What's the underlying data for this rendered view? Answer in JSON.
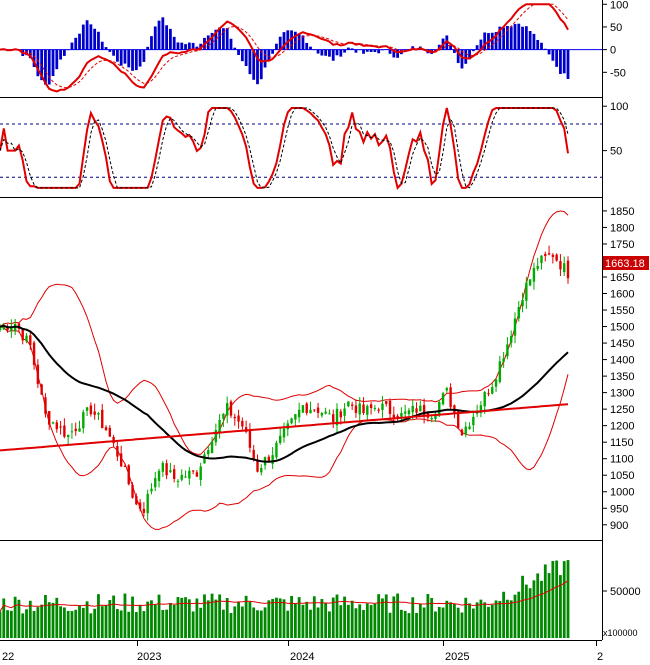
{
  "chart_data": [
    {
      "panel": "macd",
      "type": "line",
      "y_range": [
        -100,
        105
      ],
      "y_ticks": [
        100,
        50,
        0,
        -50
      ],
      "zero_line": 0,
      "series": [],
      "colors": {
        "line": "#e00000",
        "signal": "#e00000",
        "histogram": "#0000cc",
        "zero": "#0000ff"
      }
    },
    {
      "panel": "stochastic",
      "type": "line",
      "y_range": [
        0,
        107
      ],
      "y_ticks": [
        100,
        50
      ],
      "levels": [
        80,
        20
      ],
      "series": [],
      "colors": {
        "line": "#e00000",
        "levels": "#000080"
      }
    },
    {
      "panel": "price",
      "type": "candlestick",
      "y_range": [
        860,
        1880
      ],
      "y_ticks": [
        1850,
        1800,
        1750,
        1700,
        1650,
        1600,
        1550,
        1500,
        1450,
        1400,
        1350,
        1300,
        1250,
        1200,
        1150,
        1100,
        1050,
        1000,
        950,
        900
      ],
      "last_value_label": "1663.18",
      "series": [],
      "colors": {
        "up": "#00aa00",
        "down": "#e00000",
        "ma_short": "#000000",
        "ma_long": "#e00000",
        "bands": "#e00000",
        "label_bg": "#cc0000"
      }
    },
    {
      "panel": "volume",
      "type": "bar",
      "y_ticks": [
        50000
      ],
      "unit_label": "x100000",
      "series": [],
      "colors": {
        "bars": "#008800",
        "ma": "#e00000"
      }
    }
  ],
  "x_axis": {
    "labels": [
      "22",
      "2023",
      "2024",
      "2025",
      "2"
    ]
  }
}
